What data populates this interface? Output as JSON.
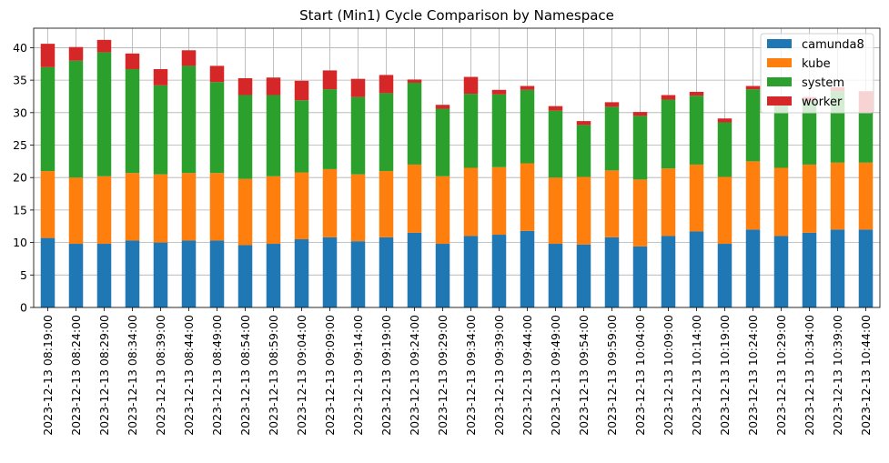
{
  "chart_data": {
    "type": "bar",
    "stacked": true,
    "title": "Start (Min1) Cycle Comparison by Namespace",
    "xlabel": "",
    "ylabel": "",
    "ylim": [
      0,
      43
    ],
    "yticks": [
      0,
      5,
      10,
      15,
      20,
      25,
      30,
      35,
      40
    ],
    "grid": true,
    "legend_position": "top-right",
    "categories": [
      "2023-12-13 08:19:00",
      "2023-12-13 08:24:00",
      "2023-12-13 08:29:00",
      "2023-12-13 08:34:00",
      "2023-12-13 08:39:00",
      "2023-12-13 08:44:00",
      "2023-12-13 08:49:00",
      "2023-12-13 08:54:00",
      "2023-12-13 08:59:00",
      "2023-12-13 09:04:00",
      "2023-12-13 09:09:00",
      "2023-12-13 09:14:00",
      "2023-12-13 09:19:00",
      "2023-12-13 09:24:00",
      "2023-12-13 09:29:00",
      "2023-12-13 09:34:00",
      "2023-12-13 09:39:00",
      "2023-12-13 09:44:00",
      "2023-12-13 09:49:00",
      "2023-12-13 09:54:00",
      "2023-12-13 09:59:00",
      "2023-12-13 10:04:00",
      "2023-12-13 10:09:00",
      "2023-12-13 10:14:00",
      "2023-12-13 10:19:00",
      "2023-12-13 10:24:00",
      "2023-12-13 10:29:00",
      "2023-12-13 10:34:00",
      "2023-12-13 10:39:00",
      "2023-12-13 10:44:00"
    ],
    "series": [
      {
        "name": "camunda8",
        "color": "#1f77b4",
        "values": [
          10.7,
          9.8,
          9.8,
          10.3,
          10.0,
          10.3,
          10.3,
          9.6,
          9.8,
          10.5,
          10.8,
          10.2,
          10.8,
          11.5,
          9.8,
          11.0,
          11.2,
          11.8,
          9.8,
          9.7,
          10.8,
          9.4,
          11.0,
          11.7,
          9.8,
          12.0,
          11.0,
          11.5,
          12.0,
          12.0
        ]
      },
      {
        "name": "kube",
        "color": "#ff7f0e",
        "values": [
          10.3,
          10.2,
          10.4,
          10.4,
          10.5,
          10.4,
          10.4,
          10.2,
          10.4,
          10.3,
          10.5,
          10.3,
          10.2,
          10.5,
          10.4,
          10.5,
          10.4,
          10.4,
          10.2,
          10.4,
          10.3,
          10.3,
          10.4,
          10.3,
          10.3,
          10.5,
          10.5,
          10.5,
          10.3,
          10.3
        ]
      },
      {
        "name": "system",
        "color": "#2ca02c",
        "values": [
          16.0,
          18.0,
          19.1,
          16.0,
          13.7,
          16.5,
          14.0,
          12.9,
          12.5,
          11.1,
          12.3,
          11.9,
          12.0,
          12.6,
          10.4,
          11.4,
          11.2,
          11.3,
          10.3,
          8.0,
          9.8,
          9.8,
          10.6,
          10.6,
          8.4,
          11.1,
          9.8,
          9.8,
          11.0,
          7.6
        ]
      },
      {
        "name": "worker",
        "color": "#d62728",
        "values": [
          3.6,
          2.1,
          1.9,
          2.4,
          2.5,
          2.4,
          2.5,
          2.6,
          2.7,
          3.0,
          2.9,
          2.8,
          2.8,
          0.5,
          0.6,
          2.6,
          0.7,
          0.6,
          0.7,
          0.6,
          0.7,
          0.6,
          0.7,
          0.6,
          0.6,
          0.5,
          0.6,
          0.6,
          0.6,
          3.4
        ]
      }
    ]
  }
}
